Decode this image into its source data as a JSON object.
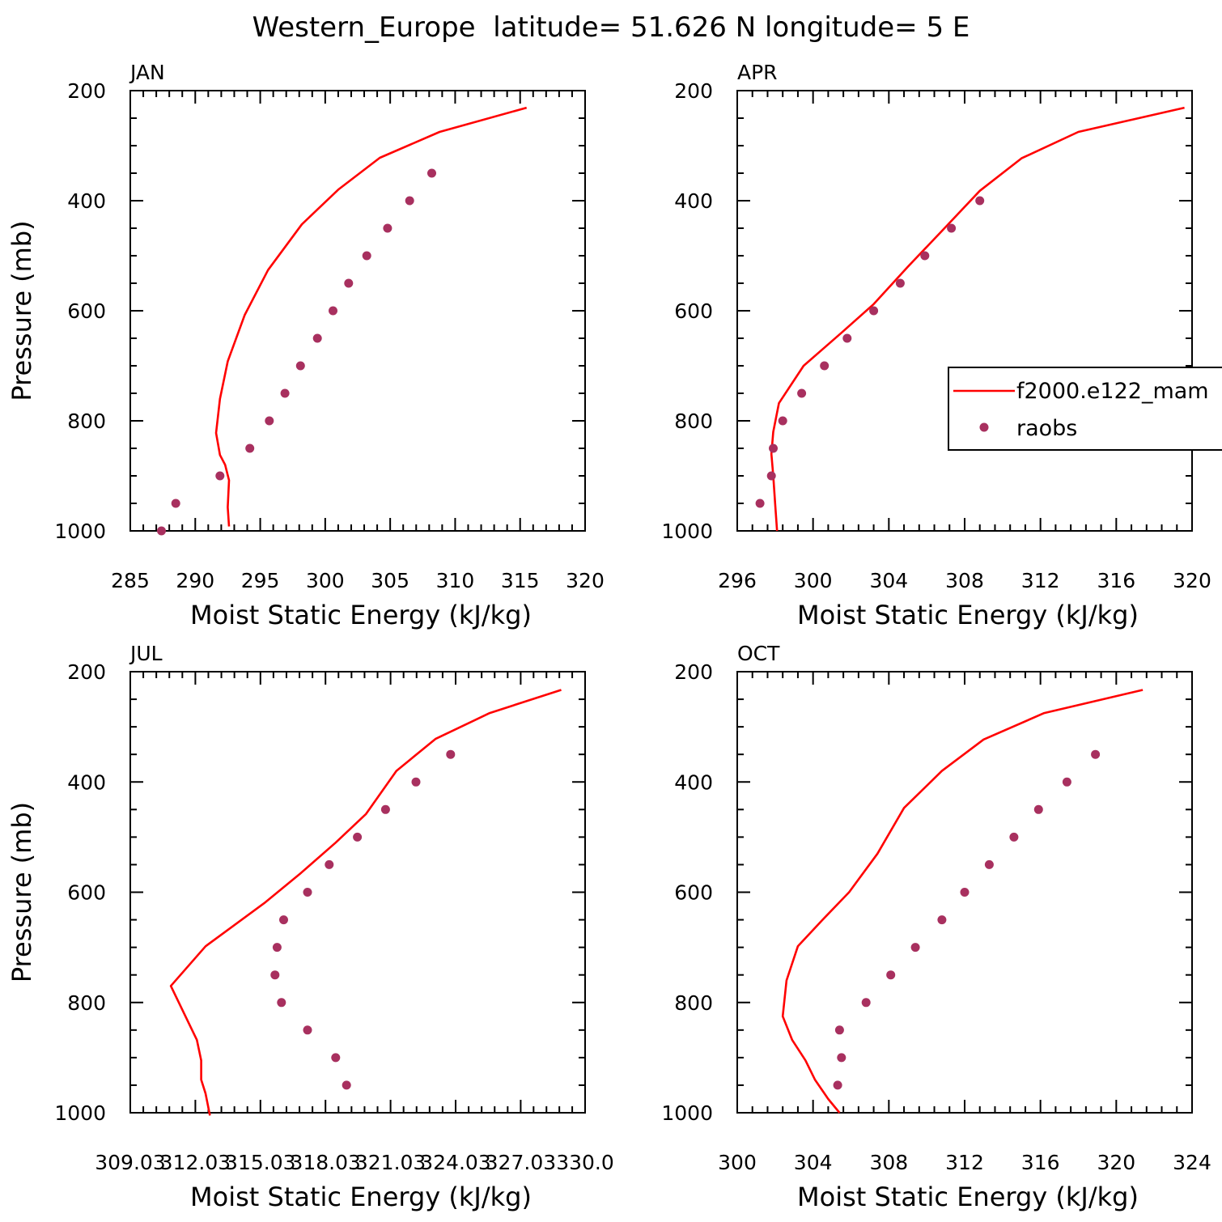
{
  "title": "Western_Europe  latitude= 51.626 N longitude= 5 E",
  "colors": {
    "model": "#ff0000",
    "obs": "#a8305f",
    "axis": "#000000"
  },
  "legend": {
    "placement": "right-middle",
    "entries": [
      "f2000.e122_mam",
      "raobs"
    ]
  },
  "chart_data": [
    {
      "type": "line",
      "month": "JAN",
      "xlabel": "Moist Static Energy (kJ/kg)",
      "ylabel": "Pressure (mb)",
      "xlim": [
        285,
        320
      ],
      "ylim": [
        1000,
        200
      ],
      "y_inverted": true,
      "x_ticks": [
        285,
        290,
        295,
        300,
        305,
        310,
        315,
        320
      ],
      "x_tick_labels": [
        "285",
        "290",
        "295",
        "300",
        "305",
        "310",
        "315",
        "320"
      ],
      "y_ticks": [
        200,
        400,
        600,
        800,
        1000
      ],
      "y_tick_labels": [
        "200",
        "400",
        "600",
        "800",
        "1000"
      ],
      "series": [
        {
          "name": "f2000.e122_mam",
          "style": "line",
          "points": [
            [
              292.6,
              992
            ],
            [
              292.5,
              957
            ],
            [
              292.6,
              908
            ],
            [
              292.3,
              880
            ],
            [
              291.9,
              862
            ],
            [
              291.6,
              822
            ],
            [
              291.9,
              760
            ],
            [
              292.5,
              692
            ],
            [
              293.8,
              608
            ],
            [
              295.6,
              526
            ],
            [
              298.2,
              443
            ],
            [
              301.0,
              380
            ],
            [
              304.2,
              322
            ],
            [
              308.8,
              275
            ],
            [
              315.5,
              231
            ]
          ]
        },
        {
          "name": "raobs",
          "style": "marker",
          "points": [
            [
              287.4,
              1000
            ],
            [
              288.5,
              950
            ],
            [
              291.9,
              900
            ],
            [
              294.2,
              850
            ],
            [
              295.7,
              800
            ],
            [
              296.9,
              750
            ],
            [
              298.1,
              700
            ],
            [
              299.4,
              650
            ],
            [
              300.6,
              600
            ],
            [
              301.8,
              550
            ],
            [
              303.2,
              500
            ],
            [
              304.8,
              450
            ],
            [
              306.5,
              400
            ],
            [
              308.2,
              350
            ]
          ]
        }
      ]
    },
    {
      "type": "line",
      "month": "APR",
      "xlabel": "Moist Static Energy (kJ/kg)",
      "ylabel": "",
      "xlim": [
        296,
        320
      ],
      "ylim": [
        1000,
        200
      ],
      "y_inverted": true,
      "x_ticks": [
        296,
        300,
        304,
        308,
        312,
        316,
        320
      ],
      "x_tick_labels": [
        "296",
        "300",
        "304",
        "308",
        "312",
        "316",
        "320"
      ],
      "y_ticks": [
        200,
        400,
        600,
        800,
        1000
      ],
      "y_tick_labels": [
        "200",
        "400",
        "600",
        "800",
        "1000"
      ],
      "series": [
        {
          "name": "f2000.e122_mam",
          "style": "line",
          "points": [
            [
              298.1,
              1000
            ],
            [
              298.0,
              950
            ],
            [
              297.9,
              900
            ],
            [
              297.8,
              860
            ],
            [
              297.9,
              820
            ],
            [
              298.2,
              768
            ],
            [
              299.5,
              700
            ],
            [
              301.5,
              640
            ],
            [
              303.2,
              588
            ],
            [
              305.0,
              520
            ],
            [
              306.8,
              455
            ],
            [
              308.8,
              382
            ],
            [
              311.0,
              323
            ],
            [
              314.0,
              275
            ],
            [
              319.6,
              231
            ]
          ]
        },
        {
          "name": "raobs",
          "style": "marker",
          "points": [
            [
              297.2,
              950
            ],
            [
              297.8,
              900
            ],
            [
              297.9,
              850
            ],
            [
              298.4,
              800
            ],
            [
              299.4,
              750
            ],
            [
              300.6,
              700
            ],
            [
              301.8,
              650
            ],
            [
              303.2,
              600
            ],
            [
              304.6,
              550
            ],
            [
              305.9,
              500
            ],
            [
              307.3,
              450
            ],
            [
              308.8,
              400
            ]
          ]
        }
      ]
    },
    {
      "type": "line",
      "month": "JUL",
      "xlabel": "Moist Static Energy (kJ/kg)",
      "ylabel": "Pressure (mb)",
      "xlim": [
        309.03,
        330.0
      ],
      "ylim": [
        1000,
        200
      ],
      "y_inverted": true,
      "x_ticks": [
        309.03,
        312.03,
        315.03,
        318.03,
        321.03,
        324.03,
        327.03,
        330.0
      ],
      "x_tick_labels": [
        "309.03",
        "312.03",
        "315.03",
        "318.03",
        "321.03",
        "324.03",
        "327.03",
        "330.0"
      ],
      "y_ticks": [
        200,
        400,
        600,
        800,
        1000
      ],
      "y_tick_labels": [
        "200",
        "400",
        "600",
        "800",
        "1000"
      ],
      "series": [
        {
          "name": "f2000.e122_mam",
          "style": "line",
          "points": [
            [
              312.7,
              1005
            ],
            [
              312.5,
              965
            ],
            [
              312.3,
              940
            ],
            [
              312.3,
              905
            ],
            [
              312.1,
              868
            ],
            [
              310.9,
              770
            ],
            [
              312.5,
              698
            ],
            [
              315.2,
              620
            ],
            [
              316.9,
              565
            ],
            [
              318.5,
              510
            ],
            [
              319.9,
              458
            ],
            [
              321.3,
              380
            ],
            [
              323.1,
              322
            ],
            [
              325.6,
              275
            ],
            [
              328.9,
              233
            ]
          ]
        },
        {
          "name": "raobs",
          "style": "marker",
          "points": [
            [
              319.0,
              950
            ],
            [
              318.5,
              900
            ],
            [
              317.2,
              850
            ],
            [
              316.0,
              800
            ],
            [
              315.7,
              750
            ],
            [
              315.8,
              700
            ],
            [
              316.1,
              650
            ],
            [
              317.2,
              600
            ],
            [
              318.2,
              550
            ],
            [
              319.5,
              500
            ],
            [
              320.8,
              450
            ],
            [
              322.2,
              400
            ],
            [
              323.8,
              350
            ]
          ]
        }
      ]
    },
    {
      "type": "line",
      "month": "OCT",
      "xlabel": "Moist Static Energy (kJ/kg)",
      "ylabel": "",
      "xlim": [
        300,
        324
      ],
      "ylim": [
        1000,
        200
      ],
      "y_inverted": true,
      "x_ticks": [
        300,
        304,
        308,
        312,
        316,
        320,
        324
      ],
      "x_tick_labels": [
        "300",
        "304",
        "308",
        "312",
        "316",
        "320",
        "324"
      ],
      "y_ticks": [
        200,
        400,
        600,
        800,
        1000
      ],
      "y_tick_labels": [
        "200",
        "400",
        "600",
        "800",
        "1000"
      ],
      "series": [
        {
          "name": "f2000.e122_mam",
          "style": "line",
          "points": [
            [
              305.4,
              1000
            ],
            [
              304.8,
              975
            ],
            [
              304.1,
              940
            ],
            [
              303.6,
              905
            ],
            [
              302.9,
              868
            ],
            [
              302.4,
              825
            ],
            [
              302.6,
              760
            ],
            [
              303.2,
              698
            ],
            [
              304.5,
              650
            ],
            [
              305.9,
              600
            ],
            [
              307.4,
              530
            ],
            [
              308.8,
              447
            ],
            [
              310.8,
              380
            ],
            [
              313.0,
              323
            ],
            [
              316.2,
              275
            ],
            [
              321.4,
              233
            ]
          ]
        },
        {
          "name": "raobs",
          "style": "marker",
          "points": [
            [
              305.3,
              950
            ],
            [
              305.5,
              900
            ],
            [
              305.4,
              850
            ],
            [
              306.8,
              800
            ],
            [
              308.1,
              750
            ],
            [
              309.4,
              700
            ],
            [
              310.8,
              650
            ],
            [
              312.0,
              600
            ],
            [
              313.3,
              550
            ],
            [
              314.6,
              500
            ],
            [
              315.9,
              450
            ],
            [
              317.4,
              400
            ],
            [
              318.9,
              350
            ]
          ]
        }
      ]
    }
  ]
}
